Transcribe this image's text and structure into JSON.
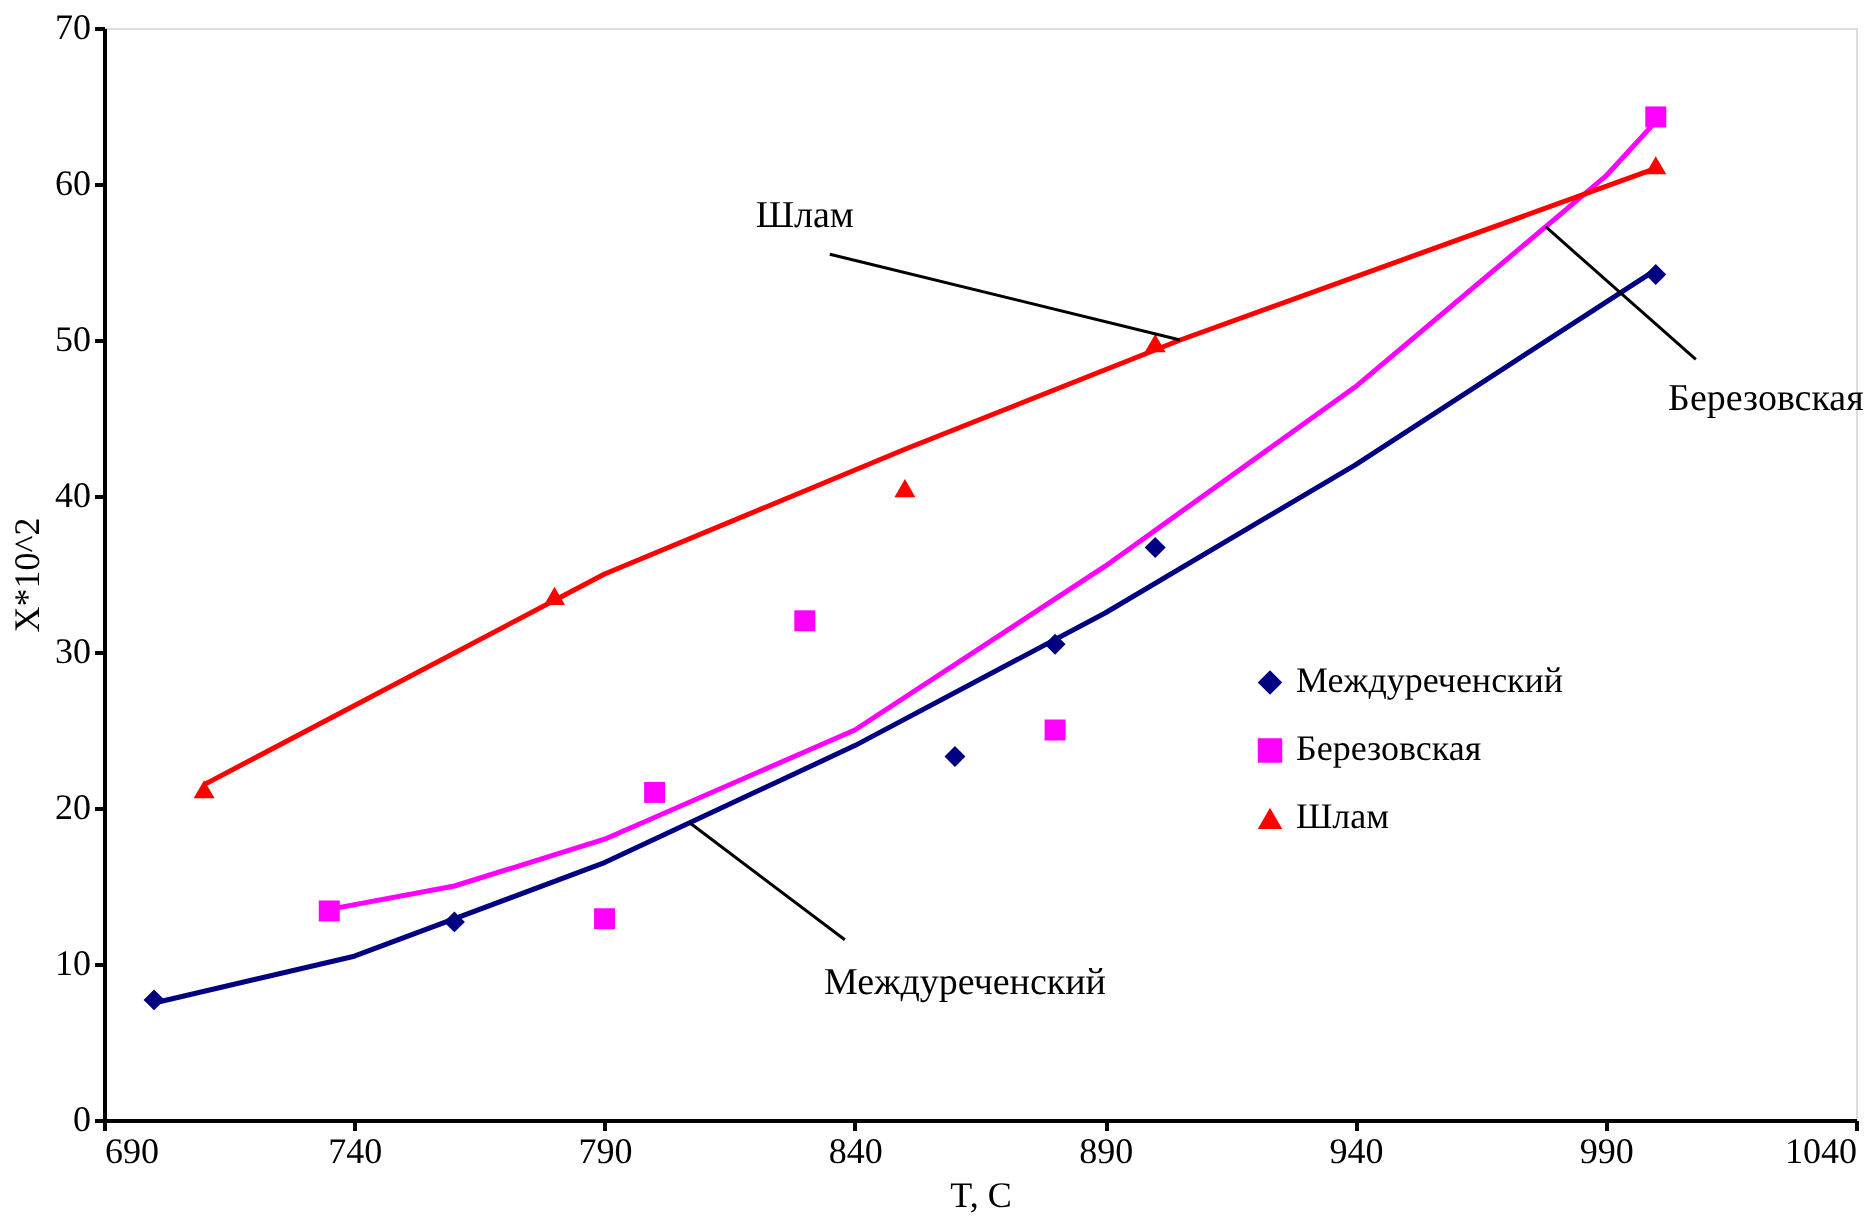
{
  "chart_data": {
    "type": "scatter",
    "xlabel": "T, C",
    "ylabel": "X*10^2",
    "xlim": [
      690,
      1040
    ],
    "xticks": [
      690,
      740,
      790,
      840,
      890,
      940,
      990,
      {
        "value": 1040,
        "label": "1040"
      }
    ],
    "ylim": [
      0,
      70
    ],
    "yticks": [
      0,
      10,
      20,
      30,
      40,
      50,
      60,
      70
    ],
    "grid": false,
    "legend": "right",
    "series": [
      {
        "name": "Междуреченский",
        "marker": "diamond",
        "color": "#000080",
        "x": [
          700,
          760,
          860,
          880,
          900,
          1000
        ],
        "values": [
          7.7,
          12.7,
          23.3,
          30.5,
          36.7,
          54.2
        ]
      },
      {
        "name": "Березовская",
        "marker": "square",
        "color": "#ff00ff",
        "x": [
          735,
          790,
          800,
          830,
          880,
          1000
        ],
        "values": [
          13.4,
          12.9,
          21,
          32,
          25,
          64.3
        ]
      },
      {
        "name": "Шлам",
        "marker": "triangle",
        "color": "#ff0000",
        "x": [
          710,
          780,
          850,
          900,
          1000
        ],
        "values": [
          21.2,
          33.6,
          40.5,
          49.8,
          61.2
        ]
      },
      {
        "type": "line",
        "marker": "none",
        "color": "#000080",
        "x": [
          700,
          740,
          790,
          840,
          890,
          940,
          1000
        ],
        "values": [
          7.5,
          10.5,
          16.5,
          24,
          32.5,
          42,
          54.5
        ]
      },
      {
        "type": "line",
        "marker": "none",
        "color": "#ff00ff",
        "x": [
          735,
          760,
          790,
          840,
          890,
          940,
          990,
          1000
        ],
        "values": [
          13.5,
          15,
          18,
          25,
          35.5,
          47,
          60.5,
          64
        ]
      },
      {
        "type": "line",
        "marker": "none",
        "color": "#ff0000",
        "x": [
          710,
          790,
          850,
          905,
          1000
        ],
        "values": [
          21.5,
          35,
          43,
          50,
          61
        ]
      }
    ],
    "annotations": [
      {
        "text": "Шлам",
        "x": 905,
        "y": 50
      },
      {
        "text": "Березовская",
        "x": 978,
        "y": 57.26
      },
      {
        "text": "Междуреченский",
        "x": 807,
        "y": 19.05
      }
    ]
  }
}
